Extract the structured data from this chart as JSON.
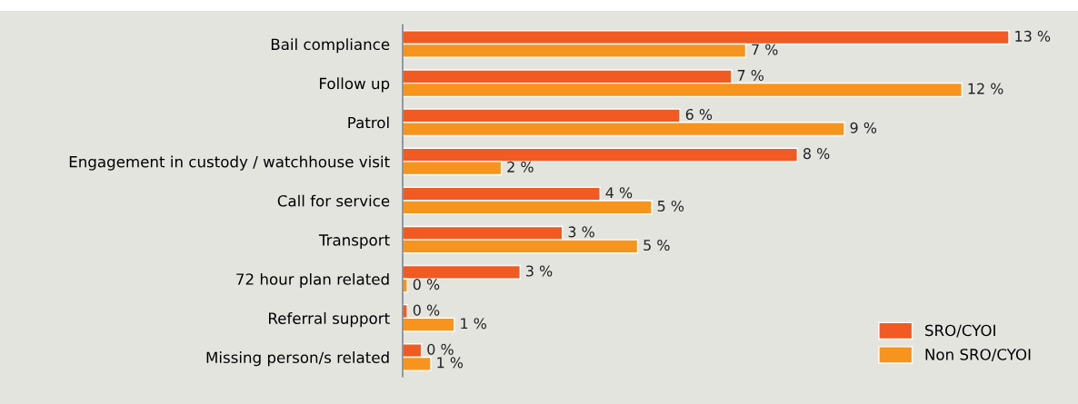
{
  "chart_data": {
    "type": "bar",
    "orientation": "horizontal",
    "categories": [
      "Bail compliance",
      "Follow up",
      "Patrol",
      "Engagement in custody / watchhouse visit",
      "Call for service",
      "Transport",
      "72 hour plan related",
      "Referral support",
      "Missing person/s related"
    ],
    "series": [
      {
        "name": "SRO/CYOI",
        "color": "#f15a22",
        "values": [
          12.9,
          7.0,
          5.9,
          8.4,
          4.2,
          3.4,
          2.5,
          0.1,
          0.4
        ],
        "value_labels": [
          "13 %",
          "7 %",
          "6 %",
          "8 %",
          "4 %",
          "3 %",
          "3 %",
          "0 %",
          "0 %"
        ]
      },
      {
        "name": "Non SRO/CYOI",
        "color": "#f7941d",
        "values": [
          7.3,
          11.9,
          9.4,
          2.1,
          5.3,
          5.0,
          0.1,
          1.1,
          0.6
        ],
        "value_labels": [
          "7 %",
          "12 %",
          "9 %",
          "2 %",
          "5 %",
          "5 %",
          "0 %",
          "1 %",
          "1 %"
        ]
      }
    ],
    "legend": "bottom right",
    "grid": false
  }
}
